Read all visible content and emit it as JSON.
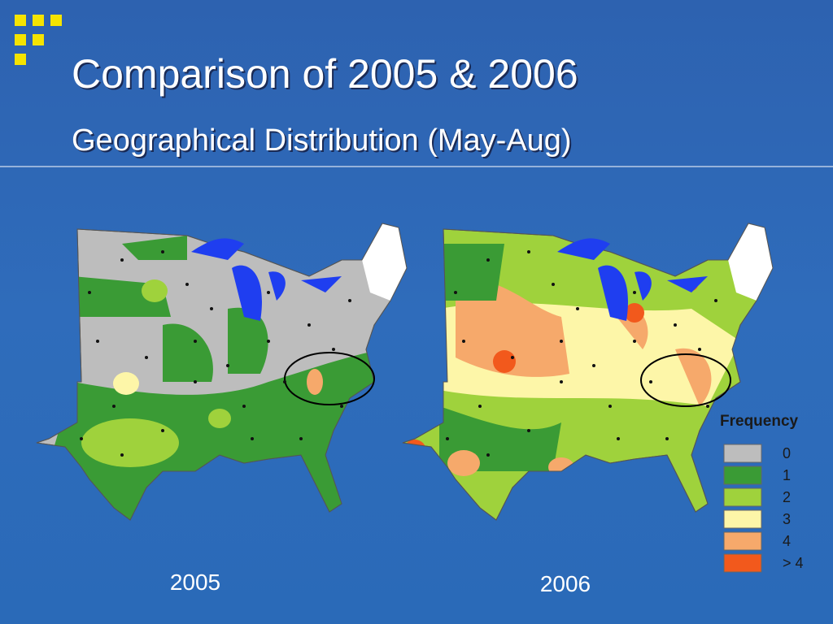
{
  "header": {
    "title": "Comparison of 2005 & 2006",
    "subtitle": "Geographical Distribution (May-Aug)"
  },
  "maps": [
    {
      "label": "2005"
    },
    {
      "label": "2006"
    }
  ],
  "legend": {
    "title": "Frequency",
    "items": [
      {
        "label": "0",
        "color": "#bdbdbd"
      },
      {
        "label": "1",
        "color": "#3a9b35"
      },
      {
        "label": "2",
        "color": "#9fd23c"
      },
      {
        "label": "3",
        "color": "#fdf6a8"
      },
      {
        "label": "4",
        "color": "#f6a96b"
      },
      {
        "label": "> 4",
        "color": "#f2591c"
      }
    ]
  }
}
